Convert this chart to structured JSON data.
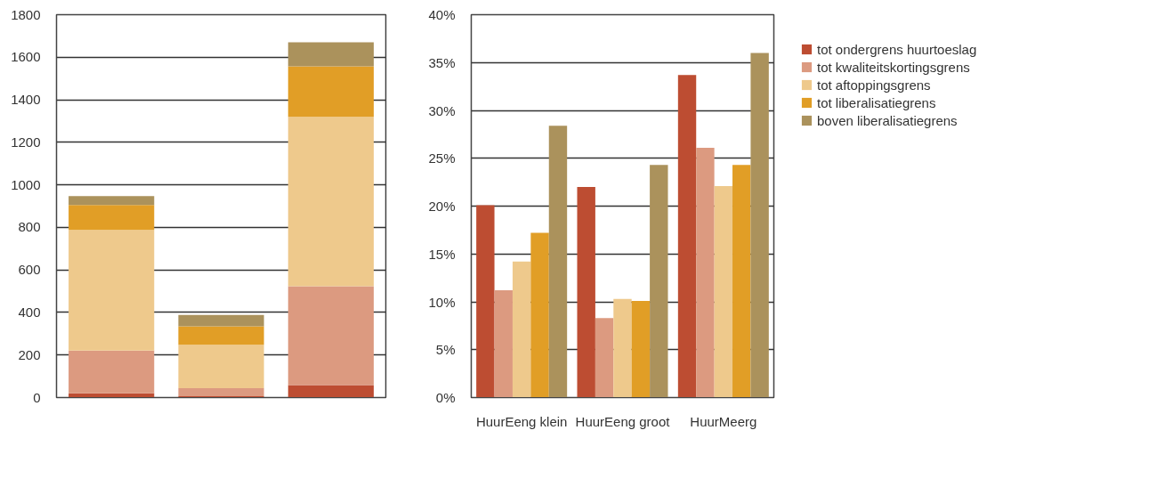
{
  "chart_data": [
    {
      "type": "bar",
      "stacked": true,
      "categories": [
        null,
        null,
        null
      ],
      "ylim": [
        0,
        1800
      ],
      "yticks": [
        0,
        200,
        400,
        600,
        800,
        1000,
        1200,
        1400,
        1600,
        1800
      ],
      "grid": "y",
      "tick_labels": "y",
      "series": [
        {
          "color": "#bd4d32",
          "values": [
            20,
            6,
            59
          ]
        },
        {
          "color": "#dc9a80",
          "values": [
            201,
            38,
            464
          ]
        },
        {
          "color": "#eec98c",
          "values": [
            567,
            204,
            797
          ]
        },
        {
          "color": "#e19e26",
          "values": [
            117,
            87,
            237
          ]
        },
        {
          "color": "#ab925c",
          "values": [
            42,
            53,
            113
          ]
        }
      ]
    },
    {
      "type": "bar",
      "categories": [
        "HuurEeng klein",
        "HuurEeng groot",
        "HuurMeerg"
      ],
      "ylim": [
        0,
        40
      ],
      "yticks": [
        {
          "value": 0,
          "label": "0%"
        },
        {
          "value": 5,
          "label": "5%"
        },
        {
          "value": 10,
          "label": "10%"
        },
        {
          "value": 15,
          "label": "15%"
        },
        {
          "value": 20,
          "label": "20%"
        },
        {
          "value": 25,
          "label": "25%"
        },
        {
          "value": 30,
          "label": "30%"
        },
        {
          "value": 35,
          "label": "35%"
        },
        {
          "value": 40,
          "label": "40%"
        }
      ],
      "grid": "y",
      "legend": "right",
      "series": [
        {
          "name": "tot ondergrens huurtoeslag",
          "color": "#bd4d32",
          "values": [
            20.1,
            22.0,
            33.7
          ]
        },
        {
          "name": "tot kwaliteitskortingsgrens",
          "color": "#dc9a80",
          "values": [
            11.2,
            8.3,
            26.1
          ]
        },
        {
          "name": "tot aftoppingsgrens",
          "color": "#eec98c",
          "values": [
            14.2,
            10.3,
            22.1
          ]
        },
        {
          "name": "tot liberalisatiegrens",
          "color": "#e19e26",
          "values": [
            17.2,
            10.1,
            24.3
          ]
        },
        {
          "name": "boven liberalisatiegrens",
          "color": "#ab925c",
          "values": [
            28.4,
            24.3,
            36.0
          ]
        }
      ]
    }
  ]
}
